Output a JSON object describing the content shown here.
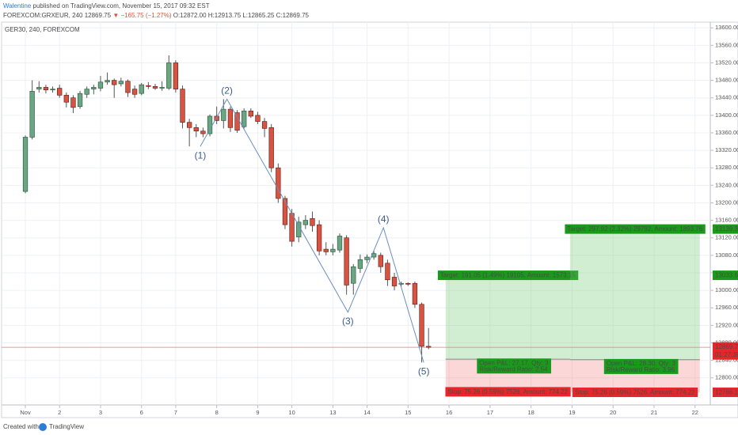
{
  "header": {
    "author": "Walentine",
    "published": "published on TradingView.com, November 15, 2017 09:32 EST",
    "symbol": "FOREXCOM:GRXEUR, 240",
    "price": "12869.75",
    "change": "▼ −165.75 (−1.27%)",
    "ohlc": "O:12872.00 H:12913.75 L:12865.25 C:12869.75"
  },
  "footer": {
    "created": "Created with",
    "brand": "TradingView"
  },
  "chart_data": {
    "type": "candlestick",
    "title": "GER30, 240, FOREXCOM",
    "up_color": "#6ba583",
    "down_color": "#d75442",
    "grid": true,
    "xlim": [
      -3.48,
      100.23
    ],
    "ylim": [
      12738,
      13613
    ],
    "xticks": [
      {
        "value": 0,
        "label": "Nov"
      },
      {
        "value": 5,
        "label": "2"
      },
      {
        "value": 11,
        "label": "3"
      },
      {
        "value": 17,
        "label": "6"
      },
      {
        "value": 22,
        "label": "7"
      },
      {
        "value": 28,
        "label": "8"
      },
      {
        "value": 34,
        "label": "9"
      },
      {
        "value": 39,
        "label": "10"
      },
      {
        "value": 45,
        "label": "13"
      },
      {
        "value": 50,
        "label": "14"
      },
      {
        "value": 56,
        "label": "15"
      },
      {
        "value": 62,
        "label": "16"
      },
      {
        "value": 68,
        "label": "17"
      },
      {
        "value": 74,
        "label": "18"
      },
      {
        "value": 80,
        "label": "19"
      },
      {
        "value": 86,
        "label": "20"
      },
      {
        "value": 92,
        "label": "21"
      },
      {
        "value": 98,
        "label": "22"
      }
    ],
    "yticks": [
      {
        "value": 12800,
        "label": "12800.00"
      },
      {
        "value": 12840,
        "label": "12840.00"
      },
      {
        "value": 12880,
        "label": "12880.00"
      },
      {
        "value": 12920,
        "label": "12920.00"
      },
      {
        "value": 12960,
        "label": "12960.00"
      },
      {
        "value": 13000,
        "label": "13000.00"
      },
      {
        "value": 13040,
        "label": "13040.00"
      },
      {
        "value": 13080,
        "label": "13080.00"
      },
      {
        "value": 13120,
        "label": "13120.00"
      },
      {
        "value": 13160,
        "label": "13160.00"
      },
      {
        "value": 13200,
        "label": "13200.00"
      },
      {
        "value": 13240,
        "label": "13240.00"
      },
      {
        "value": 13280,
        "label": "13280.00"
      },
      {
        "value": 13320,
        "label": "13320.00"
      },
      {
        "value": 13360,
        "label": "13360.00"
      },
      {
        "value": 13400,
        "label": "13400.00"
      },
      {
        "value": 13440,
        "label": "13440.00"
      },
      {
        "value": 13480,
        "label": "13480.00"
      },
      {
        "value": 13520,
        "label": "13520.00"
      },
      {
        "value": 13560,
        "label": "13560.00"
      },
      {
        "value": 13600,
        "label": "13600.00"
      }
    ],
    "open": [
      13226,
      13350,
      13460,
      13464,
      13458,
      13462,
      13446,
      13440,
      13420,
      13448,
      13460,
      13462,
      13476,
      13480,
      13472,
      13478,
      13460,
      13450,
      13468,
      13466,
      13462,
      13462,
      13520,
      13460,
      13384,
      13372,
      13364,
      13358,
      13398,
      13388,
      13414,
      13406,
      13374,
      13410,
      13400,
      13386,
      13372,
      13280,
      13210,
      13176,
      13122,
      13150,
      13164,
      13150,
      13094,
      13088,
      13092,
      13120,
      13016,
      13050,
      13070,
      13076,
      13080,
      13062,
      13030,
      13014,
      13016,
      13016,
      12968,
      12872.0
    ],
    "high": [
      13354,
      13480,
      13478,
      13470,
      13466,
      13470,
      13452,
      13446,
      13456,
      13466,
      13470,
      13490,
      13498,
      13484,
      13486,
      13482,
      13468,
      13474,
      13476,
      13472,
      13478,
      13537,
      13526,
      13468,
      13392,
      13380,
      13372,
      13402,
      13420,
      13437,
      13420,
      13412,
      13416,
      13416,
      13408,
      13394,
      13380,
      13290,
      13216,
      13186,
      13168,
      13172,
      13180,
      13160,
      13110,
      13106,
      13130,
      13126,
      13060,
      13082,
      13082,
      13090,
      13086,
      13070,
      13040,
      13020,
      13018,
      13020,
      12972,
      12913.75
    ],
    "low": [
      13222,
      13345,
      13452,
      13450,
      13452,
      13440,
      13418,
      13405,
      13415,
      13440,
      13448,
      13455,
      13470,
      13440,
      13466,
      13442,
      13440,
      13446,
      13460,
      13458,
      13456,
      13458,
      13452,
      13370,
      13329,
      13350,
      13350,
      13352,
      13380,
      13370,
      13362,
      13360,
      13370,
      13394,
      13380,
      13350,
      13270,
      13200,
      13140,
      13100,
      13110,
      13140,
      13134,
      13080,
      13080,
      13080,
      13086,
      12990,
      12990,
      13040,
      13062,
      13070,
      13040,
      13010,
      13000,
      13008,
      13010,
      12960,
      12835,
      12865.25
    ],
    "close": [
      13350,
      13455,
      13464,
      13458,
      13460,
      13446,
      13430,
      13418,
      13450,
      13460,
      13464,
      13476,
      13480,
      13470,
      13478,
      13452,
      13448,
      13470,
      13466,
      13462,
      13464,
      13520,
      13460,
      13384,
      13372,
      13364,
      13358,
      13398,
      13388,
      13414,
      13372,
      13366,
      13410,
      13398,
      13386,
      13370,
      13280,
      13210,
      13150,
      13112,
      13156,
      13160,
      13148,
      13090,
      13088,
      13094,
      13124,
      13012,
      13054,
      13070,
      13076,
      13084,
      13054,
      13024,
      13010,
      13016,
      13014,
      12968,
      12872,
      12869.75
    ],
    "last_price": 12869.75,
    "countdown": "01:27:30",
    "waves": [
      {
        "label": "(1)",
        "x": 25.6,
        "y": 13329
      },
      {
        "label": "(2)",
        "x": 29.5,
        "y": 13437
      },
      {
        "label": "(3)",
        "x": 47.2,
        "y": 12950
      },
      {
        "label": "(4)",
        "x": 52.4,
        "y": 13143
      },
      {
        "label": "(5)",
        "x": 58.3,
        "y": 12835
      }
    ],
    "positions": [
      {
        "start": 61.5,
        "end": 79.7,
        "entry": 12842.58,
        "target": 13033.63,
        "stop": 12767.32,
        "target_label": "Target: 191.05 (1.49%) 19105, Amount: 1573.15",
        "stop_label": "Stop: 75.26 (0.59%) 7526, Amount: 774.22",
        "pnl": "Open P&L: 27.17, Qty: 3",
        "rr": "Risk/Reward Ratio: 2.54"
      },
      {
        "start": 79.7,
        "end": 98.7,
        "entry": 12841.45,
        "target": 13139.37,
        "stop": 12766.19,
        "target_label": "Target: 297.92 (2.32%) 29792, Amount: 1893.76",
        "stop_label": "Stop: 75.26 (0.59%) 7526, Amount: 774.22",
        "pnl": "Open P&L: 28.30, Qty: 3",
        "rr": "Risk/Reward Ratio: 3.96"
      }
    ]
  }
}
